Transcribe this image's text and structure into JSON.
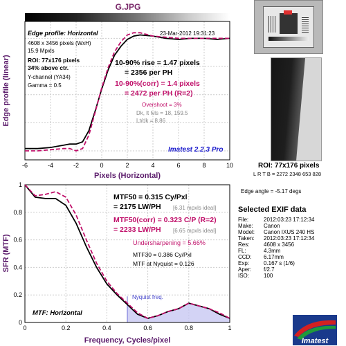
{
  "header": {
    "title": "G.JPG"
  },
  "edge_panel": {
    "name": "Edge profile: Horizontal",
    "date": "23-Mar-2012 19:31:23",
    "info": [
      "4608 x 3456 pixels (WxH)",
      "15.9 Mpxls"
    ],
    "roi": "ROI: 77x176 pixels",
    "roi_pos": "34% above ctr.",
    "channel": "Y-channel  (YA34)",
    "gamma": "Gamma = 0.5",
    "rise1": "10-90% rise = 1.47 pixels",
    "rise2": "= 2356 per PH",
    "corr1": "10-90%(corr) = 1.4 pixels",
    "corr2": "= 2472 per PH   (R=2)",
    "overshoot": "Overshoot = 3%",
    "levels": "Dk, lt lvls = 18, 159.5",
    "ltdk": "Lt/dk = 8.86",
    "version": "Imatest 2.2.3 Pro"
  },
  "mtf_panel": {
    "name": "MTF: Horizontal",
    "mtf50a": "MTF50 = 0.315 Cy/Pxl",
    "mtf50b": "= 2175 LW/PH",
    "ideal1": "[6.31 mpxls ideal]",
    "corra": "MTF50(corr) = 0.323 C/P   (R=2)",
    "corrb": "= 2233 LW/PH",
    "ideal2": "[6.65 mpxls ideal]",
    "under": "Undersharpening = 5.66%",
    "mtf30": "MTF30 = 0.386 Cy/Pxl",
    "nyq": "MTF at Nyquist = 0.126",
    "nyq_label": "Nyquist freq."
  },
  "right_panel": {
    "roi_title": "ROI: 77x176 pixels",
    "lrtb": "L R T B = 2272 2348  653 828",
    "edge_angle": "Edge angle = -5.17 degs",
    "exif_title": "Selected EXIF data",
    "exif": [
      {
        "k": "File:",
        "v": "2012:03:23 17:12:34"
      },
      {
        "k": "Make:",
        "v": "Canon"
      },
      {
        "k": "Model:",
        "v": "Canon IXUS 240 HS"
      },
      {
        "k": "Taken:",
        "v": "2012:03:23 17:12:34"
      },
      {
        "k": "Res:",
        "v": "4608 x 3456"
      },
      {
        "k": "FL:",
        "v": "4.3mm"
      },
      {
        "k": "CCD:",
        "v": "6.17mm"
      },
      {
        "k": "Exp:",
        "v": "0.167 s  (1/6)"
      },
      {
        "k": "Aper:",
        "v": "f/2.7"
      },
      {
        "k": "ISO:",
        "v": "100"
      }
    ],
    "logo": "Imatest"
  },
  "chart_data": [
    {
      "type": "line",
      "title": "G.JPG",
      "xlabel": "Pixels (Horizontal)",
      "ylabel": "Edge profile (linear)",
      "xlim": [
        -6,
        10
      ],
      "x_ticks": [
        -6,
        -4,
        -2,
        0,
        2,
        4,
        6,
        8,
        10
      ],
      "grid": true,
      "series": [
        {
          "color": "#000000",
          "x": [
            -6,
            -5,
            -4,
            -3,
            -2.5,
            -2,
            -1.5,
            -1,
            -0.5,
            0,
            0.5,
            1,
            1.5,
            2,
            2.5,
            3,
            4,
            5,
            6,
            7,
            8,
            9,
            10
          ],
          "y": [
            0.02,
            0.02,
            0.03,
            0.05,
            0.06,
            0.06,
            0.08,
            0.18,
            0.36,
            0.55,
            0.72,
            0.85,
            0.93,
            0.99,
            1.02,
            1.03,
            1.02,
            1.0,
            0.99,
            1.0,
            1.0,
            0.99,
            1.0
          ]
        },
        {
          "color": "#c0106a",
          "x": [
            -6,
            -5,
            -4,
            -3,
            -2.5,
            -2,
            -1.5,
            -1,
            -0.5,
            0,
            0.5,
            1,
            1.5,
            2,
            2.5,
            3,
            4,
            5,
            6,
            7,
            8,
            9,
            10
          ],
          "y": [
            0.0,
            0.0,
            0.01,
            0.02,
            0.02,
            0.0,
            0.02,
            0.14,
            0.35,
            0.56,
            0.74,
            0.88,
            0.97,
            1.03,
            1.05,
            1.05,
            1.02,
            1.01,
            1.0,
            1.0,
            1.0,
            1.0,
            1.0
          ]
        }
      ]
    },
    {
      "type": "line",
      "title": "MTF: Horizontal",
      "xlabel": "Frequency, Cycles/pixel",
      "ylabel": "SFR (MTF)",
      "xlim": [
        0,
        1
      ],
      "ylim": [
        0,
        1
      ],
      "x_ticks": [
        0,
        0.2,
        0.4,
        0.6,
        0.8,
        1
      ],
      "y_ticks": [
        0,
        0.2,
        0.4,
        0.6,
        0.8,
        1
      ],
      "grid": true,
      "nyquist": 0.5,
      "series": [
        {
          "color": "#000000",
          "x": [
            0,
            0.05,
            0.1,
            0.15,
            0.2,
            0.25,
            0.3,
            0.35,
            0.4,
            0.45,
            0.5,
            0.55,
            0.6,
            0.65,
            0.7,
            0.75,
            0.8,
            0.85,
            0.9,
            0.95,
            1.0
          ],
          "y": [
            1.0,
            0.91,
            0.9,
            0.9,
            0.85,
            0.72,
            0.55,
            0.4,
            0.28,
            0.2,
            0.13,
            0.06,
            0.03,
            0.05,
            0.08,
            0.1,
            0.14,
            0.12,
            0.1,
            0.06,
            0.03
          ]
        },
        {
          "color": "#c0106a",
          "x": [
            0,
            0.05,
            0.1,
            0.15,
            0.2,
            0.25,
            0.3,
            0.35,
            0.4,
            0.45,
            0.5,
            0.55,
            0.6,
            0.65,
            0.7,
            0.75,
            0.8,
            0.85,
            0.9,
            0.95,
            1.0
          ],
          "y": [
            1.0,
            0.92,
            0.93,
            0.95,
            0.91,
            0.78,
            0.6,
            0.43,
            0.3,
            0.21,
            0.14,
            0.07,
            0.03,
            0.05,
            0.08,
            0.1,
            0.14,
            0.12,
            0.1,
            0.07,
            0.03
          ]
        }
      ]
    }
  ]
}
